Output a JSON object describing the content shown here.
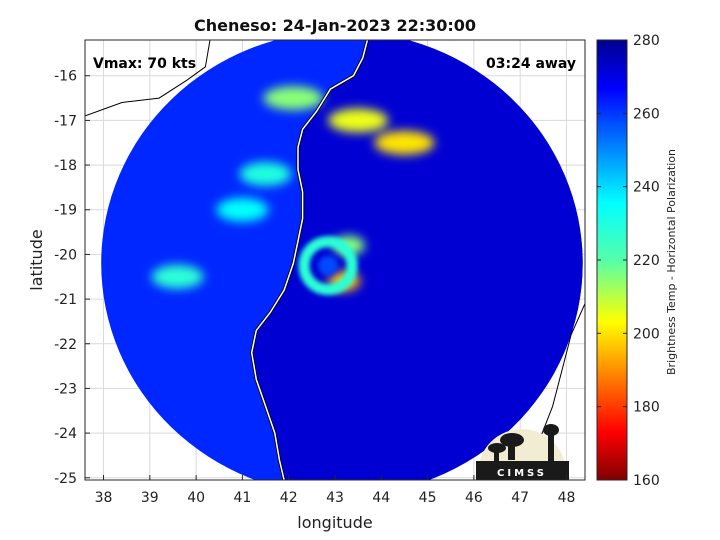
{
  "chart_data": {
    "type": "heatmap",
    "title": "Cheneso: 24-Jan-2023 22:30:00",
    "xlabel": "longitude",
    "ylabel": "latitude",
    "xlim": [
      37.6,
      48.4
    ],
    "ylim": [
      -25.05,
      -15.2
    ],
    "xticks": [
      "38",
      "39",
      "40",
      "41",
      "42",
      "43",
      "44",
      "45",
      "46",
      "47",
      "48"
    ],
    "yticks": [
      "-16",
      "-17",
      "-18",
      "-19",
      "-20",
      "-21",
      "-22",
      "-23",
      "-24",
      "-25"
    ],
    "grid": true,
    "annotations": {
      "vmax": "Vmax: 70 kts",
      "time_away": "03:24 away"
    },
    "colorbar": {
      "label": "Brightness Temp - Horizontal Polarization",
      "range": [
        160,
        280
      ],
      "ticks": [
        "280",
        "260",
        "240",
        "220",
        "200",
        "180",
        "160"
      ],
      "colormap": "jet"
    },
    "storm": {
      "eye_center": [
        42.85,
        -20.25
      ],
      "eye_temp": 258,
      "swath_center": [
        43.15,
        -20.2
      ],
      "swath_radius_deg": 5.2,
      "background_temp": 262,
      "land_temp": 272
    },
    "features": [
      {
        "kind": "rain band",
        "lon": 43.5,
        "lat": -17.0,
        "temp": 205
      },
      {
        "kind": "rain band",
        "lon": 44.5,
        "lat": -17.5,
        "temp": 200
      },
      {
        "kind": "rain band",
        "lon": 42.1,
        "lat": -16.5,
        "temp": 215
      },
      {
        "kind": "eyewall",
        "lon": 43.2,
        "lat": -20.6,
        "temp": 195
      },
      {
        "kind": "eyewall",
        "lon": 43.3,
        "lat": -19.8,
        "temp": 215
      },
      {
        "kind": "spiral band",
        "lon": 41.5,
        "lat": -18.2,
        "temp": 230
      },
      {
        "kind": "spiral band",
        "lon": 41.0,
        "lat": -19.0,
        "temp": 235
      },
      {
        "kind": "spiral band",
        "lon": 39.6,
        "lat": -20.5,
        "temp": 228
      }
    ],
    "coastline": [
      [
        43.7,
        -15.2
      ],
      [
        43.6,
        -15.6
      ],
      [
        43.4,
        -16.0
      ],
      [
        42.9,
        -16.3
      ],
      [
        42.6,
        -16.8
      ],
      [
        42.3,
        -17.2
      ],
      [
        42.2,
        -17.6
      ],
      [
        42.2,
        -18.1
      ],
      [
        42.3,
        -18.6
      ],
      [
        42.3,
        -19.2
      ],
      [
        42.2,
        -19.7
      ],
      [
        42.1,
        -20.2
      ],
      [
        41.9,
        -20.8
      ],
      [
        41.6,
        -21.3
      ],
      [
        41.3,
        -21.7
      ],
      [
        41.2,
        -22.2
      ],
      [
        41.3,
        -22.8
      ],
      [
        41.5,
        -23.4
      ],
      [
        41.7,
        -24.0
      ],
      [
        41.8,
        -24.6
      ],
      [
        41.9,
        -25.05
      ]
    ],
    "africa_coast": [
      [
        37.6,
        -16.9
      ],
      [
        38.4,
        -16.6
      ],
      [
        39.2,
        -16.5
      ],
      [
        39.8,
        -16.1
      ],
      [
        40.2,
        -15.8
      ],
      [
        40.3,
        -15.2
      ]
    ],
    "far_coast": [
      [
        48.4,
        -21.1
      ],
      [
        48.1,
        -21.8
      ],
      [
        47.9,
        -22.6
      ],
      [
        47.7,
        -23.4
      ],
      [
        47.4,
        -24.2
      ],
      [
        47.2,
        -25.05
      ]
    ]
  },
  "logo": {
    "text": "CIMSS"
  }
}
